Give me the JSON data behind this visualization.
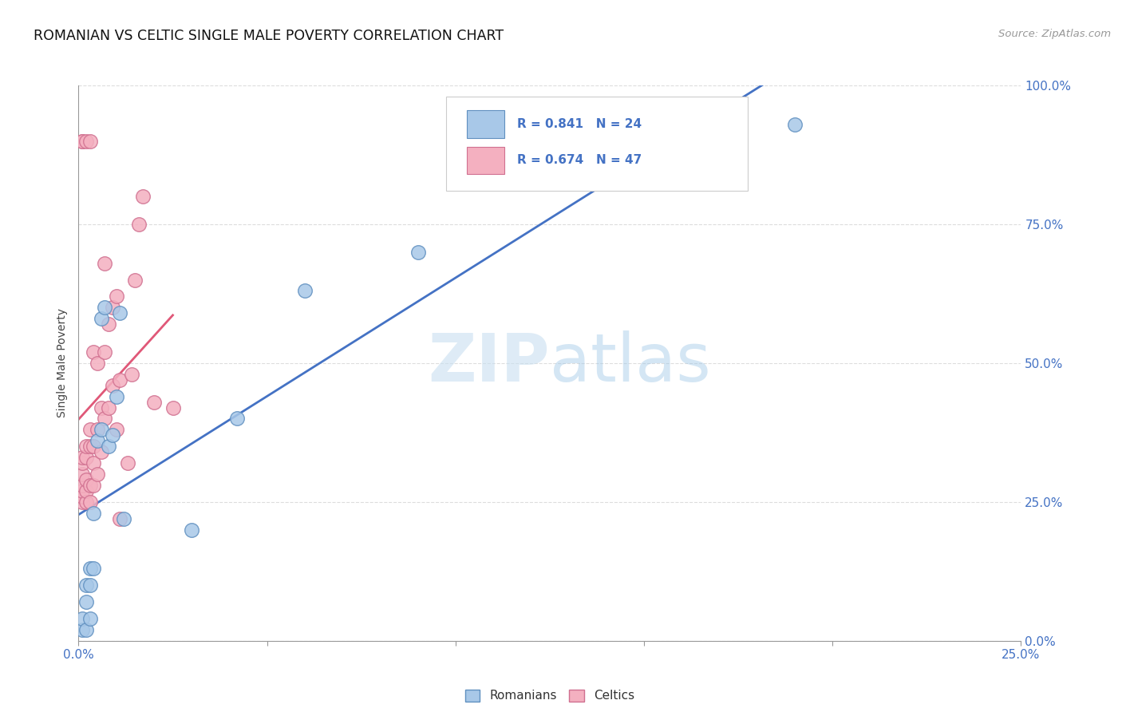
{
  "title": "ROMANIAN VS CELTIC SINGLE MALE POVERTY CORRELATION CHART",
  "source": "Source: ZipAtlas.com",
  "ylabel": "Single Male Poverty",
  "right_ytick_labels": [
    "100.0%",
    "75.0%",
    "50.0%",
    "25.0%",
    "0.0%"
  ],
  "right_ytick_values": [
    1.0,
    0.75,
    0.5,
    0.25,
    0.0
  ],
  "xmin": 0.0,
  "xmax": 0.25,
  "ymin": -0.05,
  "ymax": 1.05,
  "romanian_color": "#a8c8e8",
  "celtic_color": "#f4b0c0",
  "romanian_edge_color": "#6090c0",
  "celtic_edge_color": "#d07090",
  "romanian_line_color": "#4472c4",
  "celtic_line_color": "#e05878",
  "legend_r_romanian": "R = 0.841",
  "legend_n_romanian": "N = 24",
  "legend_r_celtic": "R = 0.674",
  "legend_n_celtic": "N = 47",
  "legend_label_romanian": "Romanians",
  "legend_label_celtic": "Celtics",
  "watermark_zip": "ZIP",
  "watermark_atlas": "atlas",
  "background_color": "#ffffff",
  "grid_color": "#dddddd",
  "romanian_x": [
    0.001,
    0.001,
    0.002,
    0.002,
    0.002,
    0.003,
    0.003,
    0.003,
    0.004,
    0.004,
    0.005,
    0.006,
    0.006,
    0.007,
    0.008,
    0.009,
    0.01,
    0.011,
    0.012,
    0.03,
    0.042,
    0.06,
    0.09,
    0.19
  ],
  "romanian_y": [
    0.02,
    0.04,
    0.02,
    0.07,
    0.1,
    0.04,
    0.1,
    0.13,
    0.23,
    0.13,
    0.36,
    0.38,
    0.58,
    0.6,
    0.35,
    0.37,
    0.44,
    0.59,
    0.22,
    0.2,
    0.4,
    0.63,
    0.7,
    0.93
  ],
  "celtic_x": [
    0.001,
    0.001,
    0.001,
    0.001,
    0.001,
    0.001,
    0.001,
    0.001,
    0.001,
    0.002,
    0.002,
    0.002,
    0.002,
    0.002,
    0.002,
    0.003,
    0.003,
    0.003,
    0.003,
    0.003,
    0.004,
    0.004,
    0.004,
    0.004,
    0.005,
    0.005,
    0.005,
    0.006,
    0.006,
    0.007,
    0.007,
    0.007,
    0.008,
    0.008,
    0.009,
    0.009,
    0.01,
    0.01,
    0.011,
    0.011,
    0.013,
    0.014,
    0.015,
    0.016,
    0.017,
    0.02,
    0.025
  ],
  "celtic_y": [
    0.25,
    0.26,
    0.27,
    0.28,
    0.3,
    0.32,
    0.33,
    0.9,
    0.9,
    0.25,
    0.27,
    0.29,
    0.33,
    0.35,
    0.9,
    0.25,
    0.28,
    0.35,
    0.38,
    0.9,
    0.28,
    0.32,
    0.35,
    0.52,
    0.3,
    0.38,
    0.5,
    0.34,
    0.42,
    0.4,
    0.52,
    0.68,
    0.42,
    0.57,
    0.46,
    0.6,
    0.38,
    0.62,
    0.22,
    0.47,
    0.32,
    0.48,
    0.65,
    0.75,
    0.8,
    0.43,
    0.42
  ]
}
